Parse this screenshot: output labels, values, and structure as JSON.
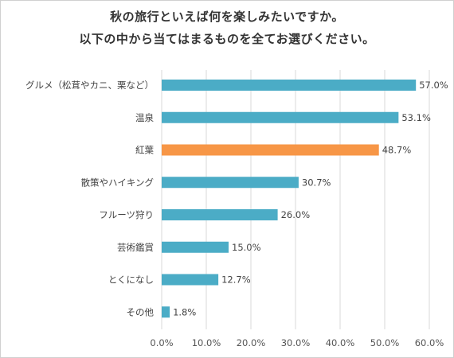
{
  "chart_data": {
    "type": "bar",
    "orientation": "horizontal",
    "title": "秋の旅行といえば何を楽しみたいですか。",
    "subtitle": "以下の中から当てはまるものを全てお選びください。",
    "categories": [
      "グルメ（松茸やカニ、栗など）",
      "温泉",
      "紅葉",
      "散策やハイキング",
      "フルーツ狩り",
      "芸術鑑賞",
      "とくになし",
      "その他"
    ],
    "values": [
      57.0,
      53.1,
      48.7,
      30.7,
      26.0,
      15.0,
      12.7,
      1.8
    ],
    "value_labels": [
      "57.0%",
      "53.1%",
      "48.7%",
      "30.7%",
      "26.0%",
      "15.0%",
      "12.7%",
      "1.8%"
    ],
    "highlight_index": 2,
    "xlim": [
      0,
      60
    ],
    "xticks": [
      "0.0%",
      "10.0%",
      "20.0%",
      "30.0%",
      "40.0%",
      "50.0%",
      "60.0%"
    ],
    "grid": true,
    "colors": {
      "bar": "#4bacc6",
      "highlight": "#f79646",
      "grid": "#d9d9d9"
    }
  }
}
